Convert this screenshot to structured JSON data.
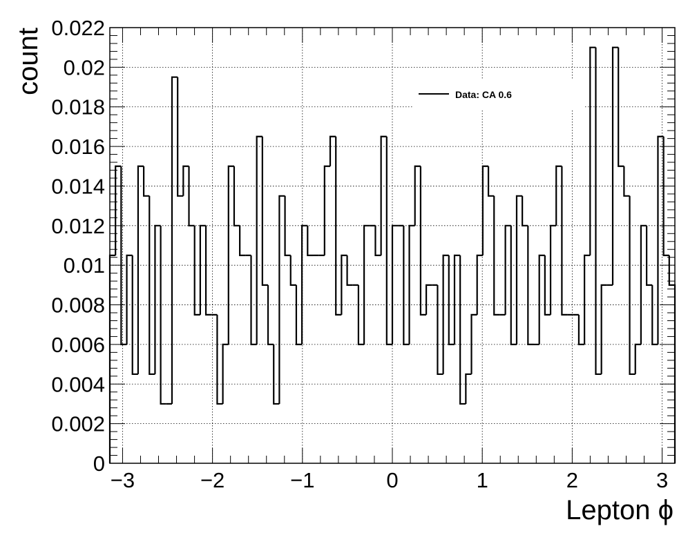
{
  "chart_data": {
    "type": "line",
    "style": "step-histogram",
    "xlabel": "Lepton ϕ",
    "ylabel": "count",
    "xlim": [
      -3.1416,
      3.1416
    ],
    "ylim": [
      0,
      0.022
    ],
    "grid": true,
    "legend_position": "top-right",
    "x_ticks": [
      {
        "v": -3,
        "label": "−3"
      },
      {
        "v": -2,
        "label": "−2"
      },
      {
        "v": -1,
        "label": "−1"
      },
      {
        "v": 0,
        "label": "0"
      },
      {
        "v": 1,
        "label": "1"
      },
      {
        "v": 2,
        "label": "2"
      },
      {
        "v": 3,
        "label": "3"
      }
    ],
    "y_ticks": [
      {
        "v": 0,
        "label": "0"
      },
      {
        "v": 0.002,
        "label": "0.002"
      },
      {
        "v": 0.004,
        "label": "0.004"
      },
      {
        "v": 0.006,
        "label": "0.006"
      },
      {
        "v": 0.008,
        "label": "0.008"
      },
      {
        "v": 0.01,
        "label": "0.01"
      },
      {
        "v": 0.012,
        "label": "0.012"
      },
      {
        "v": 0.014,
        "label": "0.014"
      },
      {
        "v": 0.016,
        "label": "0.016"
      },
      {
        "v": 0.018,
        "label": "0.018"
      },
      {
        "v": 0.02,
        "label": "0.02"
      },
      {
        "v": 0.022,
        "label": "0.022"
      }
    ],
    "series": [
      {
        "name": "Data: CA 0.6",
        "color": "#000000",
        "values": [
          0.0105,
          0.015,
          0.006,
          0.0105,
          0.0045,
          0.015,
          0.0135,
          0.0045,
          0.012,
          0.003,
          0.003,
          0.0195,
          0.0135,
          0.015,
          0.012,
          0.0075,
          0.012,
          0.0075,
          0.0075,
          0.003,
          0.006,
          0.015,
          0.012,
          0.0105,
          0.0105,
          0.006,
          0.0165,
          0.009,
          0.006,
          0.003,
          0.0135,
          0.0105,
          0.009,
          0.006,
          0.012,
          0.0105,
          0.0105,
          0.0105,
          0.015,
          0.0165,
          0.0075,
          0.0105,
          0.009,
          0.009,
          0.006,
          0.012,
          0.012,
          0.0105,
          0.0165,
          0.006,
          0.012,
          0.012,
          0.006,
          0.012,
          0.015,
          0.0075,
          0.009,
          0.009,
          0.0045,
          0.0105,
          0.006,
          0.0105,
          0.003,
          0.0045,
          0.0075,
          0.0105,
          0.015,
          0.0135,
          0.0075,
          0.0075,
          0.012,
          0.006,
          0.0135,
          0.012,
          0.006,
          0.006,
          0.0105,
          0.0075,
          0.012,
          0.015,
          0.0075,
          0.0075,
          0.0075,
          0.006,
          0.0105,
          0.021,
          0.0045,
          0.009,
          0.009,
          0.021,
          0.015,
          0.0135,
          0.0045,
          0.006,
          0.012,
          0.009,
          0.006,
          0.0165,
          0.0105,
          0.009
        ]
      }
    ]
  }
}
